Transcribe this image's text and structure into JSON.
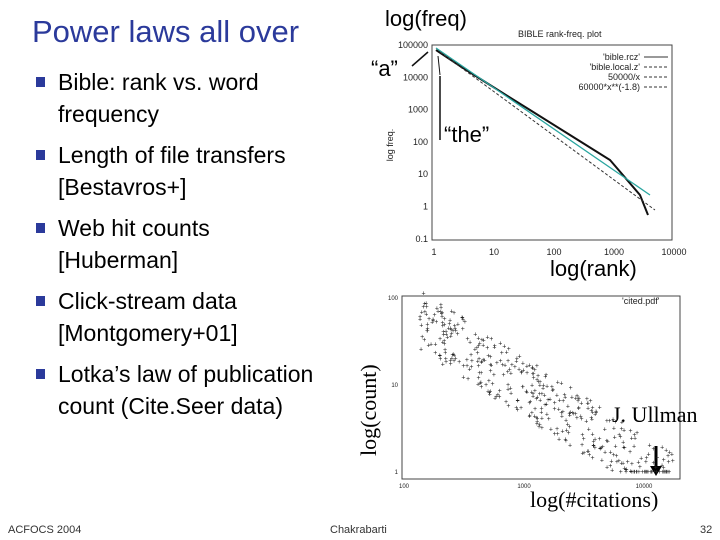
{
  "header": {
    "title": "Power laws all over"
  },
  "bullets": [
    "Bible: rank vs. word frequency",
    "Length of  file transfers [Bestavros+]",
    "Web hit counts [Huberman]",
    "Click-stream data [Montgomery+01]",
    "Lotka’s law of publication count (Cite.Seer data)"
  ],
  "plot_top": {
    "title": "BIBLE rank-freq. plot",
    "y_label": "log freq.",
    "yticks": [
      "100000",
      "10000",
      "1000",
      "100",
      "10",
      "1",
      "0.1"
    ],
    "xticks": [
      "1",
      "10",
      "100",
      "1000",
      "10000"
    ],
    "legend": [
      "'bible.rcz'",
      "'bible.local.z'",
      "50000/x",
      "60000*x**(-1.8)"
    ]
  },
  "plot_bottom": {
    "legend": "'cited.pdf'",
    "yticks": [
      "100",
      "10",
      "1"
    ],
    "xticks": [
      "100",
      "1000",
      "10000"
    ],
    "x_label": "log(#citations)"
  },
  "annotations": {
    "freq": "log(freq)",
    "a": "“a”",
    "the": "“the”",
    "rank": "log(rank)",
    "count": "log(count)",
    "ullman": "J. Ullman",
    "citations": "log(#citations)"
  },
  "footer": {
    "left": "ACFOCS 2004",
    "center": "Chakrabarti",
    "page": "32"
  }
}
